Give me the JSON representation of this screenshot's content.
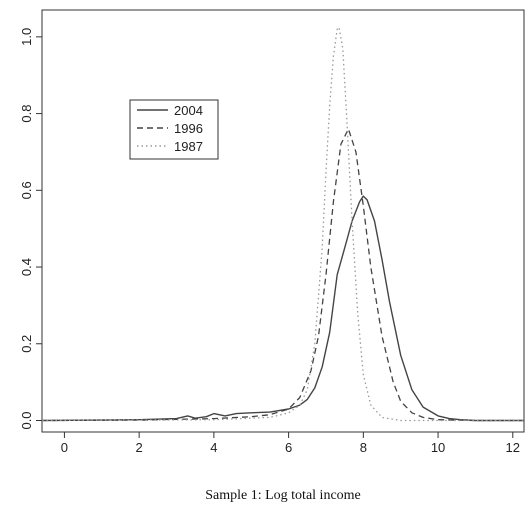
{
  "chart_data": {
    "type": "line",
    "title": "",
    "xlabel": "Sample 1: Log total income",
    "ylabel": "",
    "xlim": [
      -0.6,
      12.3
    ],
    "ylim": [
      -0.03,
      1.07
    ],
    "xticks": [
      "0",
      "2",
      "4",
      "6",
      "8",
      "10",
      "12"
    ],
    "yticks": [
      "0.0",
      "0.2",
      "0.4",
      "0.6",
      "0.8",
      "1.0"
    ],
    "grid": false,
    "legend_position": "top-left",
    "series": [
      {
        "name": "2004",
        "style": "solid",
        "color": "#444444",
        "x": [
          -0.6,
          2,
          3,
          3.3,
          3.5,
          3.8,
          4.0,
          4.3,
          4.6,
          5.0,
          5.5,
          6.0,
          6.3,
          6.5,
          6.7,
          6.9,
          7.1,
          7.3,
          7.5,
          7.7,
          7.9,
          8.0,
          8.1,
          8.3,
          8.5,
          8.7,
          9.0,
          9.3,
          9.6,
          10.0,
          10.3,
          10.6,
          11,
          12.3
        ],
        "y": [
          0.0,
          0.002,
          0.005,
          0.012,
          0.006,
          0.01,
          0.018,
          0.012,
          0.018,
          0.02,
          0.022,
          0.03,
          0.04,
          0.055,
          0.085,
          0.14,
          0.23,
          0.38,
          0.45,
          0.52,
          0.57,
          0.585,
          0.575,
          0.52,
          0.42,
          0.31,
          0.17,
          0.08,
          0.035,
          0.012,
          0.005,
          0.002,
          0.0,
          0.0
        ]
      },
      {
        "name": "1996",
        "style": "dashed",
        "color": "#444444",
        "x": [
          -0.6,
          2,
          4,
          5.0,
          5.5,
          6.0,
          6.3,
          6.6,
          6.8,
          7.0,
          7.2,
          7.4,
          7.6,
          7.8,
          8.0,
          8.2,
          8.5,
          8.8,
          9.0,
          9.3,
          9.6,
          10,
          11,
          12.3
        ],
        "y": [
          0.0,
          0.001,
          0.005,
          0.01,
          0.015,
          0.03,
          0.06,
          0.13,
          0.22,
          0.38,
          0.57,
          0.72,
          0.76,
          0.7,
          0.56,
          0.4,
          0.22,
          0.1,
          0.05,
          0.02,
          0.008,
          0.002,
          0.0,
          0.0
        ]
      },
      {
        "name": "1987",
        "style": "dotted",
        "color": "#999999",
        "x": [
          -0.6,
          4,
          5.5,
          6.0,
          6.3,
          6.5,
          6.7,
          6.9,
          7.0,
          7.1,
          7.2,
          7.3,
          7.35,
          7.45,
          7.55,
          7.7,
          7.85,
          8.0,
          8.2,
          8.5,
          9.0,
          12.3
        ],
        "y": [
          0.0,
          0.002,
          0.008,
          0.02,
          0.04,
          0.08,
          0.2,
          0.45,
          0.65,
          0.82,
          0.95,
          1.02,
          1.025,
          0.97,
          0.8,
          0.52,
          0.28,
          0.12,
          0.04,
          0.008,
          0.0,
          0.0
        ]
      }
    ]
  }
}
